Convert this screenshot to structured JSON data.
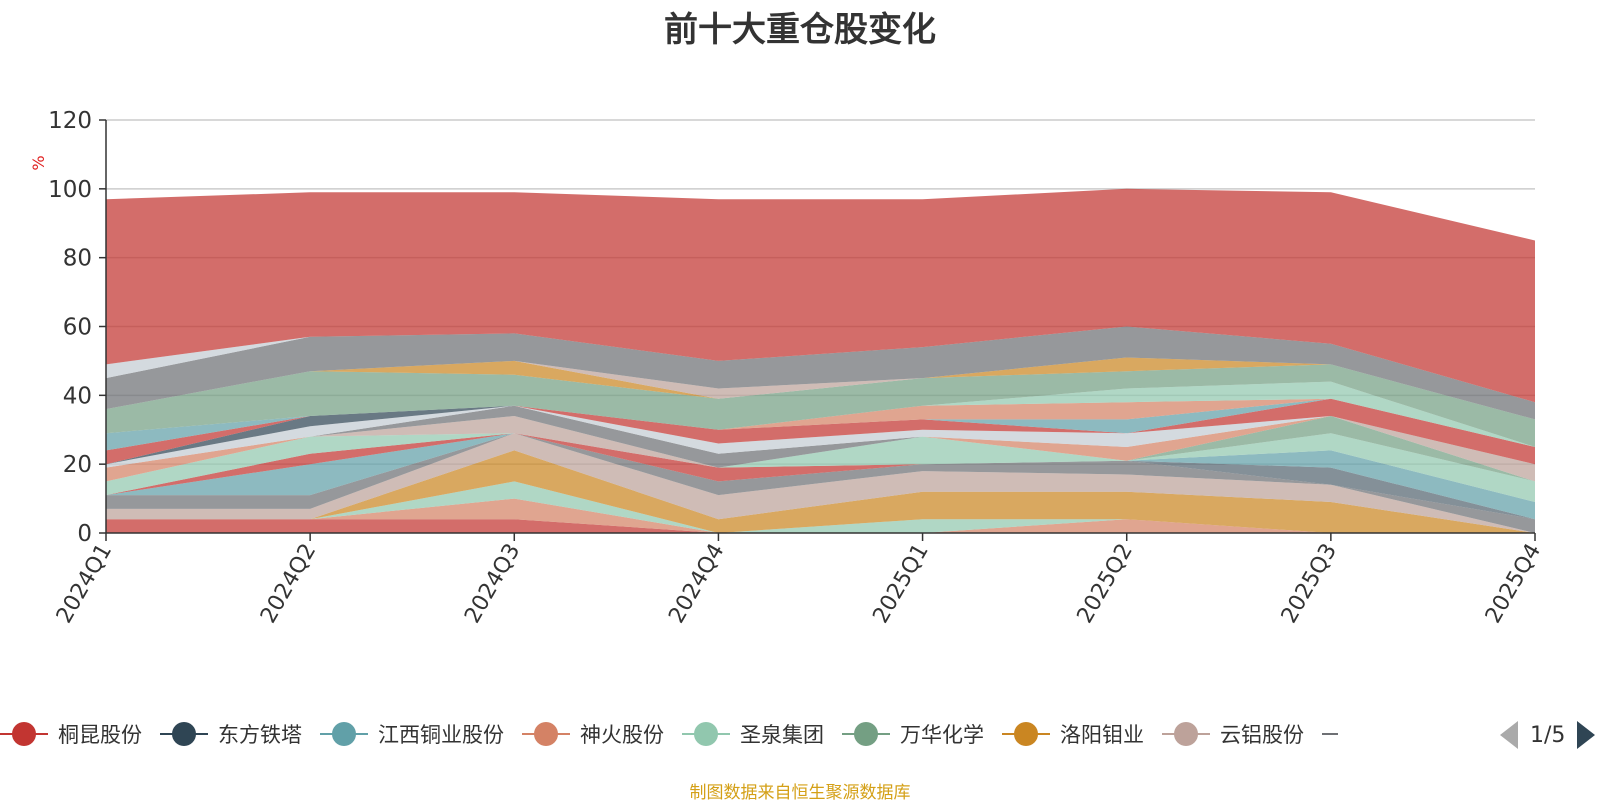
{
  "title": "前十大重仓股变化",
  "source_note": "制图数据来自恒生聚源数据库",
  "pager": {
    "text": "1/5"
  },
  "colors": [
    "#c23531",
    "#2f4554",
    "#61a0a8",
    "#d48265",
    "#91c7ae",
    "#749f83",
    "#ca8622",
    "#bda29a",
    "#6e7074",
    "#546570",
    "#c4ccd3"
  ],
  "legend_items": [
    {
      "name": "桐昆股份",
      "color": "#c23531"
    },
    {
      "name": "东方铁塔",
      "color": "#2f4554"
    },
    {
      "name": "江西铜业股份",
      "color": "#61a0a8"
    },
    {
      "name": "神火股份",
      "color": "#d48265"
    },
    {
      "name": "圣泉集团",
      "color": "#91c7ae"
    },
    {
      "name": "万华化学",
      "color": "#749f83"
    },
    {
      "name": "洛阳钼业",
      "color": "#ca8622"
    },
    {
      "name": "云铝股份",
      "color": "#bda29a"
    }
  ],
  "chart_data": {
    "type": "area",
    "stacked": true,
    "title": "前十大重仓股变化",
    "ylabel": "%",
    "ylim": [
      0,
      120
    ],
    "yticks": [
      0,
      20,
      40,
      60,
      80,
      100,
      120
    ],
    "x": [
      "2024Q1",
      "2024Q2",
      "2024Q3",
      "2024Q4",
      "2025Q1",
      "2025Q2",
      "2025Q3",
      "2025Q4"
    ],
    "grid": true,
    "legend_position": "bottom",
    "series": [
      {
        "color": "#c23531",
        "values": [
          4,
          4,
          4,
          0,
          0,
          0,
          0,
          0
        ]
      },
      {
        "color": "#d48265",
        "values": [
          0,
          0,
          6,
          0,
          0,
          4,
          0,
          0
        ]
      },
      {
        "color": "#91c7ae",
        "values": [
          0,
          0,
          5,
          0,
          4,
          0,
          0,
          0
        ]
      },
      {
        "color": "#ca8622",
        "values": [
          0,
          0,
          9,
          4,
          8,
          8,
          9,
          0
        ]
      },
      {
        "color": "#bda29a",
        "values": [
          3,
          3,
          5,
          7,
          6,
          5,
          5,
          0
        ]
      },
      {
        "color": "#6e7074",
        "values": [
          4,
          4,
          0,
          4,
          2,
          4,
          0,
          4
        ]
      },
      {
        "color": "#546570",
        "values": [
          0,
          0,
          0,
          0,
          0,
          0,
          5,
          0
        ]
      },
      {
        "color": "#61a0a8",
        "values": [
          0,
          9,
          0,
          0,
          0,
          0,
          5,
          5
        ]
      },
      {
        "color": "#c23531",
        "values": [
          0,
          3,
          0,
          4,
          0,
          0,
          0,
          0
        ]
      },
      {
        "color": "#91c7ae",
        "values": [
          4,
          5,
          0,
          0,
          8,
          0,
          5,
          6
        ]
      },
      {
        "color": "#749f83",
        "values": [
          0,
          0,
          0,
          0,
          0,
          0,
          5,
          0
        ]
      },
      {
        "color": "#bda29a",
        "values": [
          0,
          0,
          5,
          0,
          0,
          0,
          0,
          5
        ]
      },
      {
        "color": "#d48265",
        "values": [
          4,
          0,
          0,
          0,
          0,
          4,
          0,
          0
        ]
      },
      {
        "color": "#6e7074",
        "values": [
          0,
          0,
          3,
          4,
          0,
          0,
          0,
          0
        ]
      },
      {
        "color": "#c4ccd3",
        "values": [
          1,
          3,
          0,
          3,
          2,
          4,
          0,
          0
        ]
      },
      {
        "color": "#ca8622",
        "values": [
          0,
          0,
          0,
          0,
          0,
          0,
          0,
          0
        ]
      },
      {
        "color": "#2f4554",
        "values": [
          0,
          3,
          0,
          0,
          0,
          0,
          0,
          0
        ]
      },
      {
        "color": "#c23531",
        "values": [
          4,
          0,
          0,
          4,
          3,
          0,
          5,
          5
        ]
      },
      {
        "color": "#61a0a8",
        "values": [
          5,
          0,
          0,
          0,
          0,
          4,
          0,
          0
        ]
      },
      {
        "color": "#d48265",
        "values": [
          0,
          0,
          0,
          0,
          4,
          5,
          0,
          0
        ]
      },
      {
        "color": "#91c7ae",
        "values": [
          0,
          0,
          0,
          0,
          0,
          4,
          5,
          0
        ]
      },
      {
        "color": "#749f83",
        "values": [
          7,
          13,
          9,
          9,
          8,
          5,
          5,
          8
        ]
      },
      {
        "color": "#ca8622",
        "values": [
          0,
          0,
          4,
          0,
          0,
          4,
          0,
          0
        ]
      },
      {
        "color": "#bda29a",
        "values": [
          0,
          0,
          0,
          3,
          0,
          0,
          0,
          0
        ]
      },
      {
        "color": "#6e7074",
        "values": [
          9,
          10,
          8,
          8,
          9,
          9,
          6,
          5
        ]
      },
      {
        "color": "#c4ccd3",
        "values": [
          4,
          0,
          0,
          0,
          0,
          0,
          0,
          0
        ]
      },
      {
        "color": "#c23531",
        "values": [
          48,
          42,
          41,
          47,
          43,
          40,
          44,
          47
        ]
      }
    ]
  }
}
